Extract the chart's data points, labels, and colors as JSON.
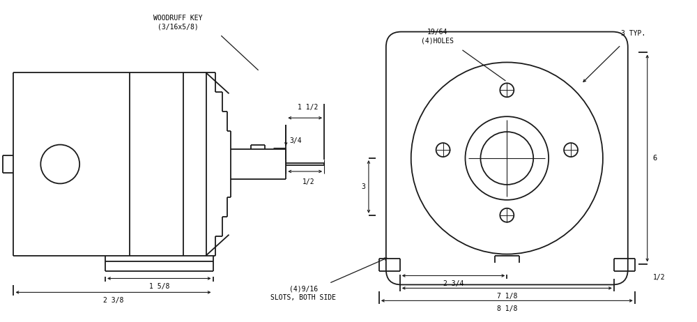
{
  "bg_color": "#ffffff",
  "line_color": "#1a1a1a",
  "lw_main": 1.3,
  "lw_dim": 0.8,
  "fig_width": 10.0,
  "fig_height": 4.62,
  "fs": 7.0,
  "annotations": {
    "woodruff_key": "WOODRUFF KEY\n(3/16x5/8)",
    "holes_19_64": "19/64\n(4)HOLES",
    "typ_3": "3 TYP.",
    "dim_1_1_2": "1 1/2",
    "dim_3_4": "3/4",
    "dim_1_2": "1/2",
    "dim_1_5_8": "1 5/8",
    "dim_2_3_8": "2 3/8",
    "dim_slots": "(4)9/16\nSLOTS, BOTH SIDE",
    "dim_2_3_4": "2 3/4",
    "dim_7_1_8": "7 1/8",
    "dim_8_1_8": "8 1/8",
    "dim_3": "3",
    "dim_6": "6",
    "dim_half_right": "1/2"
  }
}
